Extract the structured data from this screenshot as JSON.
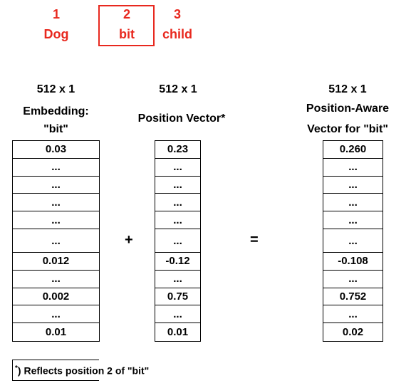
{
  "tokens": [
    {
      "index": "1",
      "word": "Dog",
      "highlighted": false
    },
    {
      "index": "2",
      "word": "bit",
      "highlighted": true
    },
    {
      "index": "3",
      "word": "child",
      "highlighted": false
    }
  ],
  "columns": {
    "embedding": {
      "dim": "512 x 1",
      "title_line1": "Embedding:",
      "title_line2": "\"bit\"",
      "cells": [
        "0.03",
        "...",
        "...",
        "...",
        "...",
        "...",
        "0.012",
        "...",
        "0.002",
        "...",
        "0.01"
      ]
    },
    "position": {
      "dim": "512 x 1",
      "title": "Position Vector*",
      "cells": [
        "0.23",
        "...",
        "...",
        "...",
        "...",
        "...",
        "-0.12",
        "...",
        "0.75",
        "...",
        "0.01"
      ]
    },
    "result": {
      "dim": "512 x 1",
      "title_line1": "Position-Aware",
      "title_line2": "Vector for \"bit\"",
      "cells": [
        "0.260",
        "...",
        "...",
        "...",
        "...",
        "...",
        "-0.108",
        "...",
        "0.752",
        "...",
        "0.02"
      ]
    }
  },
  "operators": {
    "plus": "+",
    "equals": "="
  },
  "footnote": {
    "marker": "*",
    "text": ") Reflects position 2 of \"bit\""
  },
  "colors": {
    "token": "#e8281e",
    "text": "#000000",
    "border": "#000000"
  }
}
